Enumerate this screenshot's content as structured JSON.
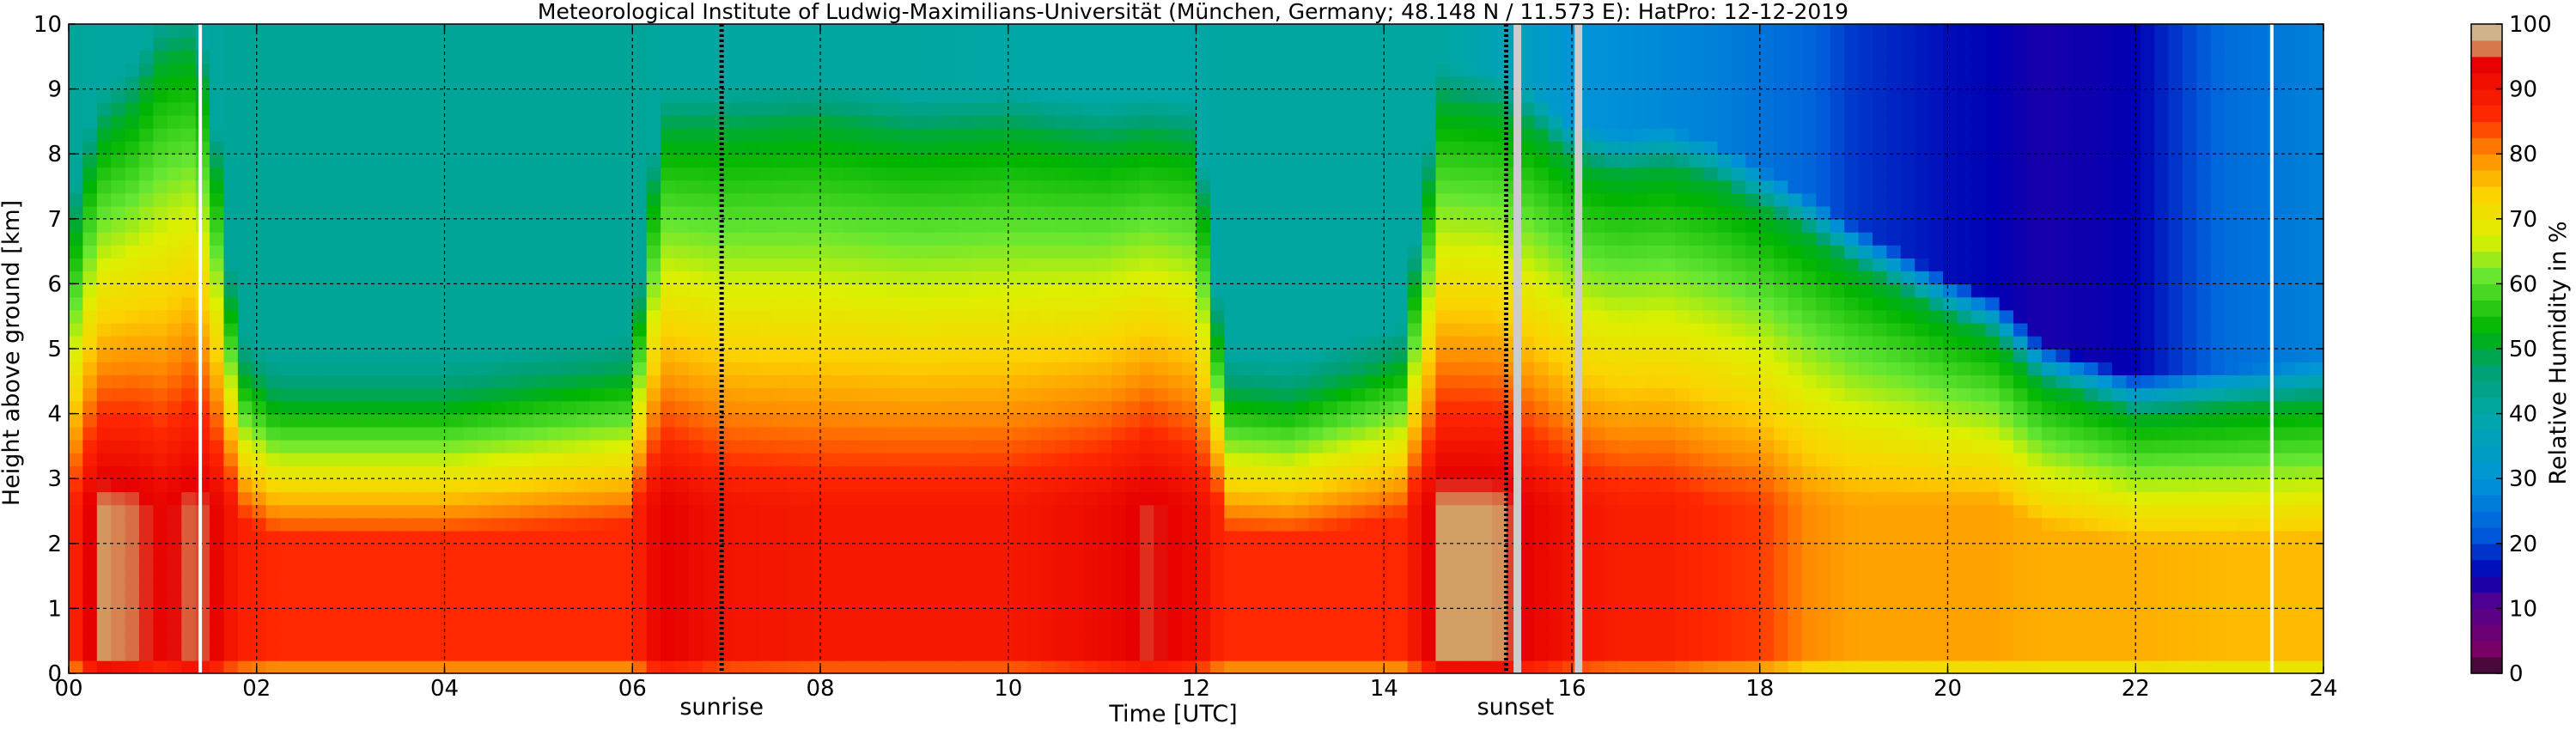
{
  "chart_data": {
    "type": "heatmap",
    "title": "Meteorological Institute of Ludwig-Maximilians-Universität (München, Germany; 48.148 N / 11.573 E):    HatPro: 12-12-2019",
    "xlabel": "Time [UTC]",
    "ylabel": "Height above ground [km]",
    "xlim": [
      0,
      24
    ],
    "ylim": [
      0,
      10
    ],
    "x_ticks": [
      0,
      2,
      4,
      6,
      8,
      10,
      12,
      14,
      16,
      18,
      20,
      22,
      24
    ],
    "x_tick_labels": [
      "00",
      "02",
      "04",
      "06",
      "08",
      "10",
      "12",
      "14",
      "16",
      "18",
      "20",
      "22",
      "24"
    ],
    "y_ticks": [
      0,
      1,
      2,
      3,
      4,
      5,
      6,
      7,
      8,
      9,
      10
    ],
    "y_tick_labels": [
      "0",
      "1",
      "2",
      "3",
      "4",
      "5",
      "6",
      "7",
      "8",
      "9",
      "10"
    ],
    "grid": true,
    "colorbar": {
      "label": "Relative Humidity in %",
      "range": [
        0,
        100
      ],
      "ticks": [
        0,
        10,
        20,
        30,
        40,
        50,
        60,
        70,
        80,
        90,
        100
      ],
      "tick_labels": [
        "0",
        "10",
        "20",
        "30",
        "40",
        "50",
        "60",
        "70",
        "80",
        "90",
        "100"
      ],
      "stops": [
        {
          "value": 0,
          "color": "#111111"
        },
        {
          "value": 2.5,
          "color": "#800060"
        },
        {
          "value": 12,
          "color": "#4a0096"
        },
        {
          "value": 15,
          "color": "#0000b4"
        },
        {
          "value": 22,
          "color": "#0060dc"
        },
        {
          "value": 30,
          "color": "#0096d6"
        },
        {
          "value": 40,
          "color": "#00a7a7"
        },
        {
          "value": 47,
          "color": "#00a070"
        },
        {
          "value": 53,
          "color": "#00b400"
        },
        {
          "value": 61,
          "color": "#64e632"
        },
        {
          "value": 67,
          "color": "#dcf000"
        },
        {
          "value": 74,
          "color": "#fcd200"
        },
        {
          "value": 80,
          "color": "#ff8a00"
        },
        {
          "value": 86,
          "color": "#ff2800"
        },
        {
          "value": 94,
          "color": "#e60000"
        },
        {
          "value": 97,
          "color": "#d2a064"
        },
        {
          "value": 100,
          "color": "#ccc0a8"
        }
      ]
    },
    "annotations": [
      {
        "text": "sunrise",
        "time": 6.95
      },
      {
        "text": "sunset",
        "time": 15.4
      }
    ],
    "vertical_markers": [
      {
        "time": 1.4,
        "color": "#ffffff",
        "style": "solid"
      },
      {
        "time": 6.95,
        "color": "#000000",
        "style": "dotted"
      },
      {
        "time": 15.3,
        "color": "#000000",
        "style": "dotted"
      },
      {
        "time": 15.42,
        "color": "#cccccc",
        "style": "solid"
      },
      {
        "time": 16.07,
        "color": "#cccccc",
        "style": "solid"
      },
      {
        "time": 23.45,
        "color": "#ffffff",
        "style": "solid"
      }
    ],
    "humidity_profile": {
      "time_hours": [
        0,
        0.3,
        0.7,
        1.0,
        1.3,
        1.5,
        1.8,
        2.2,
        4,
        6.0,
        6.3,
        7,
        8,
        9,
        10,
        11,
        11.5,
        12.0,
        12.3,
        13,
        14.2,
        14.6,
        15.2,
        15.6,
        16,
        16.5,
        17,
        17.5,
        18,
        18.5,
        19,
        20,
        20.5,
        21,
        22,
        23,
        24
      ],
      "rh_percent_below_2km": [
        85,
        97,
        96,
        93,
        96,
        95,
        88,
        86,
        86,
        86,
        94,
        90,
        89,
        89,
        89,
        92,
        95,
        92,
        86,
        86,
        86,
        97,
        97,
        93,
        90,
        88,
        88,
        86,
        85,
        80,
        78,
        78,
        78,
        77,
        77,
        76,
        76
      ],
      "moist_top_km": [
        6.5,
        8.3,
        8.8,
        9.5,
        9.6,
        8.8,
        4.7,
        4.2,
        4.2,
        4.6,
        8.4,
        8.4,
        8.5,
        8.3,
        8.4,
        8.2,
        8.3,
        8.2,
        4.3,
        4.2,
        4.8,
        8.8,
        8.7,
        8.4,
        7.9,
        7.7,
        7.8,
        7.6,
        7.2,
        6.8,
        6.3,
        5.5,
        5.2,
        4.5,
        4.0,
        4.1,
        4.2
      ],
      "upper_rh_percent": [
        42,
        41,
        41,
        42,
        41,
        41,
        42,
        42,
        42,
        42,
        41,
        41,
        41,
        41,
        40,
        40,
        40,
        40,
        41,
        41,
        41,
        41,
        37,
        34,
        30,
        29,
        28,
        27,
        25,
        23,
        19,
        16,
        15,
        14,
        15,
        24,
        27
      ]
    }
  }
}
